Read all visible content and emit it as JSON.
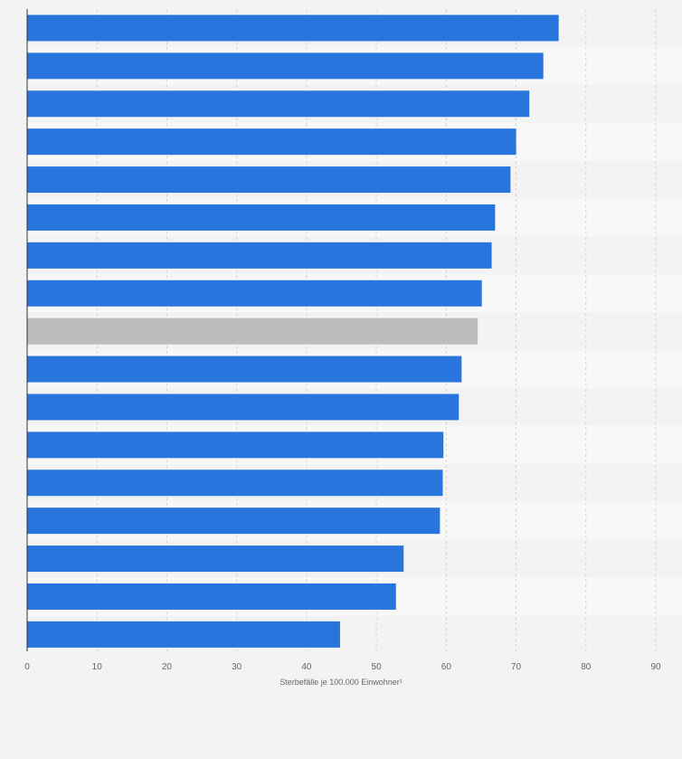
{
  "chart_data": {
    "type": "bar",
    "orientation": "horizontal",
    "title": "",
    "xlabel": "Sterbefälle je 100.000 Einwohner¹",
    "ylabel": "",
    "xlim": [
      0,
      90
    ],
    "x_ticks": [
      "0",
      "10",
      "20",
      "30",
      "40",
      "50",
      "60",
      "70",
      "80",
      "90"
    ],
    "grid": true,
    "categories": [
      "",
      "",
      "",
      "",
      "",
      "",
      "",
      "",
      "",
      "",
      "",
      "",
      "",
      "",
      "",
      "",
      ""
    ],
    "values": [
      76.1,
      73.9,
      71.9,
      70.0,
      69.2,
      67.0,
      66.5,
      65.1,
      64.5,
      62.2,
      61.8,
      59.6,
      59.5,
      59.1,
      53.9,
      52.8,
      44.8
    ],
    "highlight_index": 8,
    "colors": {
      "bar": "#2876dd",
      "highlight": "#bdbdbd",
      "background": "#f3f3f3",
      "band": "#f8f8f8",
      "grid": "#d6d6d6",
      "text": "#666666"
    }
  }
}
